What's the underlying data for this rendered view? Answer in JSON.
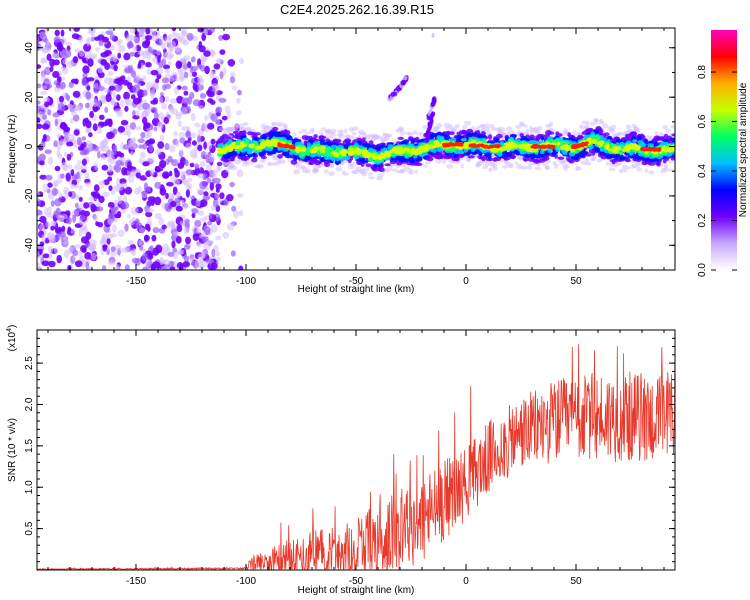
{
  "figure": {
    "title": "C2E4.2025.262.16.39.R15"
  },
  "chart_data": [
    {
      "type": "heatmap",
      "xlabel": "Height of straight line (km)",
      "ylabel": "Frequency (Hz)",
      "xlim": [
        -195,
        95
      ],
      "ylim": [
        -50,
        48
      ],
      "x_ticks": [
        -150,
        -100,
        -50,
        0,
        50
      ],
      "y_ticks": [
        -40,
        -20,
        0,
        20,
        40
      ],
      "colorbar": {
        "label": "Normalized spectral amplitude",
        "range": [
          0,
          0.97
        ],
        "ticks": [
          "0.0",
          "0.2",
          "0.4",
          "0.6",
          "0.8"
        ],
        "colormap": [
          "#ffffff",
          "#c8a8ff",
          "#7000ff",
          "#0000ff",
          "#00c0ff",
          "#00ff60",
          "#c8ff00",
          "#ffb000",
          "#ff0000",
          "#ff00c0"
        ]
      },
      "noise_region_x": [
        -195,
        -112
      ],
      "band_center": [
        {
          "x": -112,
          "y": -1
        },
        {
          "x": -100,
          "y": 0
        },
        {
          "x": -90,
          "y": 1.5
        },
        {
          "x": -80,
          "y": 0
        },
        {
          "x": -70,
          "y": -2
        },
        {
          "x": -55,
          "y": -2
        },
        {
          "x": -40,
          "y": -3.5
        },
        {
          "x": -28,
          "y": -2
        },
        {
          "x": -15,
          "y": 0
        },
        {
          "x": -5,
          "y": 1
        },
        {
          "x": 10,
          "y": 0
        },
        {
          "x": 30,
          "y": 0
        },
        {
          "x": 50,
          "y": 0
        },
        {
          "x": 58,
          "y": 2
        },
        {
          "x": 70,
          "y": -1
        },
        {
          "x": 80,
          "y": -1
        },
        {
          "x": 95,
          "y": -1.5
        }
      ],
      "branch": [
        {
          "x": -35,
          "y": 19
        },
        {
          "x": -30,
          "y": 24
        },
        {
          "x": -27,
          "y": 28
        },
        {
          "x": -17,
          "y": 12
        },
        {
          "x": -14,
          "y": 20
        }
      ]
    },
    {
      "type": "line",
      "xlabel": "Height of straight line (km)",
      "ylabel": "SNR (10 * v/v)",
      "y_multiplier": "(x10",
      "y_multiplier_exp": "4",
      "y_multiplier_close": ")",
      "xlim": [
        -195,
        95
      ],
      "ylim": [
        0,
        2.9
      ],
      "x_ticks": [
        -150,
        -100,
        -50,
        0,
        50
      ],
      "y_ticks": [
        0.5,
        1.0,
        1.5,
        2.0,
        2.5
      ],
      "line_color": "#e8392b",
      "envelope": [
        {
          "x": -195,
          "base": 0.01,
          "amp": 0.005
        },
        {
          "x": -100,
          "base": 0.02,
          "amp": 0.01
        },
        {
          "x": -97,
          "base": 0.08,
          "amp": 0.1
        },
        {
          "x": -90,
          "base": 0.12,
          "amp": 0.15
        },
        {
          "x": -80,
          "base": 0.15,
          "amp": 0.25
        },
        {
          "x": -60,
          "base": 0.2,
          "amp": 0.35
        },
        {
          "x": -40,
          "base": 0.35,
          "amp": 0.45
        },
        {
          "x": -20,
          "base": 0.6,
          "amp": 0.55
        },
        {
          "x": -10,
          "base": 0.85,
          "amp": 0.5
        },
        {
          "x": 0,
          "base": 1.05,
          "amp": 0.45
        },
        {
          "x": 10,
          "base": 1.35,
          "amp": 0.45
        },
        {
          "x": 25,
          "base": 1.65,
          "amp": 0.45
        },
        {
          "x": 40,
          "base": 1.8,
          "amp": 0.5
        },
        {
          "x": 60,
          "base": 1.85,
          "amp": 0.55
        },
        {
          "x": 80,
          "base": 1.85,
          "amp": 0.55
        },
        {
          "x": 95,
          "base": 1.8,
          "amp": 0.55
        }
      ]
    }
  ]
}
